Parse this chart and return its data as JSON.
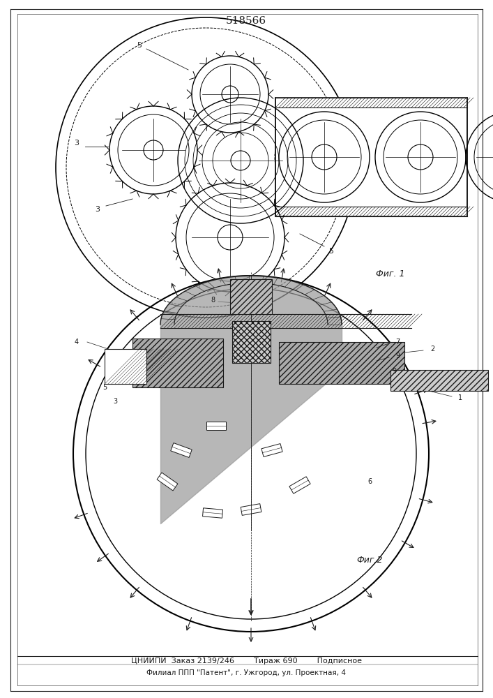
{
  "title": "518566",
  "fig1_label": "Фиг. 1",
  "fig2_label": "Фиг.2",
  "footer_line1": "ЦНИИПИ  Заказ 2139/246        Тираж 690        Подписное",
  "footer_line2": "Филиал ППП \"Патент\", г. Ужгород, ул. Проектная, 4",
  "bg_color": "#ffffff",
  "line_color": "#1a1a1a",
  "fig_width": 7.07,
  "fig_height": 10.0
}
